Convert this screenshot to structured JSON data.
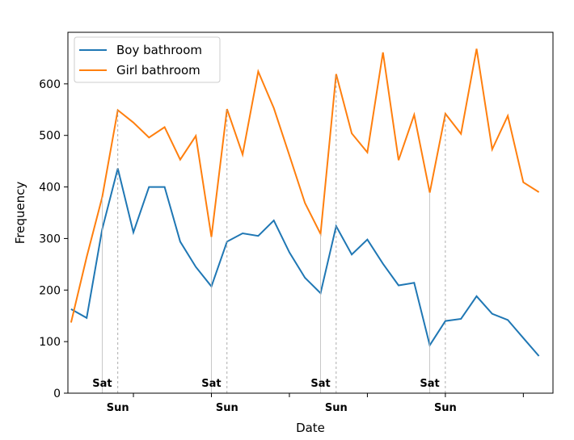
{
  "chart_data": {
    "type": "line",
    "xlabel": "Date",
    "ylabel": "Frequency",
    "ylim": [
      0,
      700
    ],
    "y_ticks": [
      0,
      100,
      200,
      300,
      400,
      500,
      600
    ],
    "grid": false,
    "legend_position": "top-left",
    "series": [
      {
        "name": "Boy bathroom",
        "color": "#1f77b4",
        "values": [
          163,
          146,
          318,
          436,
          312,
          400,
          400,
          294,
          245,
          207,
          294,
          310,
          305,
          335,
          273,
          224,
          194,
          324,
          269,
          298,
          251,
          209,
          214,
          93,
          140,
          144,
          188,
          154,
          142,
          107,
          72
        ]
      },
      {
        "name": "Girl bathroom",
        "color": "#ff7f0e",
        "values": [
          137,
          264,
          380,
          549,
          525,
          496,
          516,
          453,
          499,
          303,
          551,
          463,
          624,
          553,
          461,
          369,
          309,
          619,
          504,
          467,
          661,
          452,
          540,
          389,
          542,
          503,
          668,
          473,
          538,
          409,
          390
        ]
      }
    ],
    "day_markers": [
      {
        "label": "Sat",
        "index": 2,
        "style": "solid"
      },
      {
        "label": "Sun",
        "index": 3,
        "style": "dashed"
      },
      {
        "label": "Sat",
        "index": 9,
        "style": "solid"
      },
      {
        "label": "Sun",
        "index": 10,
        "style": "dashed"
      },
      {
        "label": "Sat",
        "index": 16,
        "style": "solid"
      },
      {
        "label": "Sun",
        "index": 17,
        "style": "dashed"
      },
      {
        "label": "Sat",
        "index": 23,
        "style": "solid"
      },
      {
        "label": "Sun",
        "index": 24,
        "style": "dashed"
      }
    ],
    "x_minor_ticks": [
      4,
      9,
      14,
      19,
      24,
      29
    ]
  }
}
